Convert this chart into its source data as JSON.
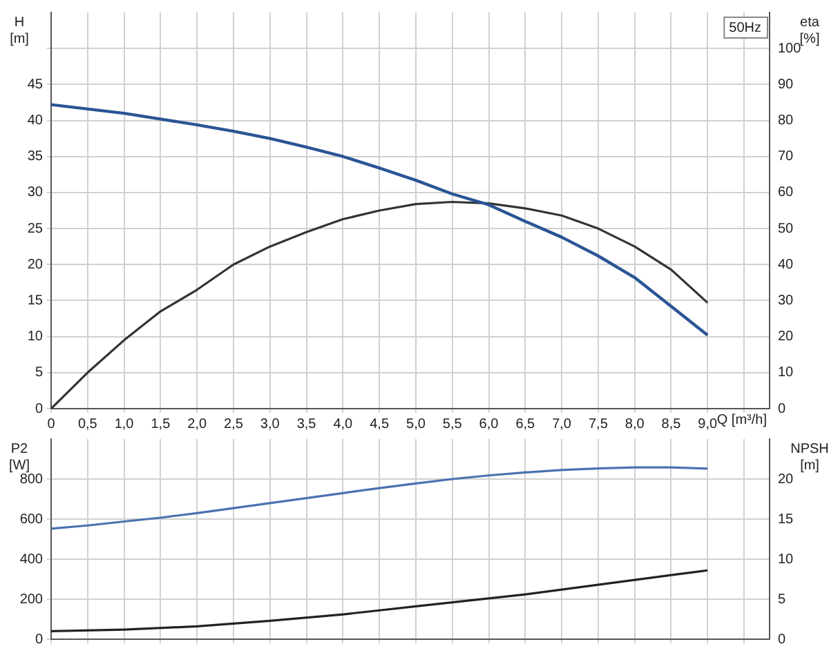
{
  "chart_data": [
    {
      "type": "line",
      "title": "50Hz",
      "xlabel": "Q [m³/h]",
      "ylabel": "H [m]",
      "y2label": "eta [%]",
      "xlim": [
        0,
        9.85
      ],
      "xticks": [
        0,
        {
          "value": 0.5,
          "label": "0,5"
        },
        {
          "value": 1,
          "label": "1,0"
        },
        {
          "value": 1.5,
          "label": "1,5"
        },
        {
          "value": 2,
          "label": "2,0"
        },
        {
          "value": 2.5,
          "label": "2,5"
        },
        {
          "value": 3,
          "label": "3,0"
        },
        {
          "value": 3.5,
          "label": "3,5"
        },
        {
          "value": 4,
          "label": "4,0"
        },
        {
          "value": 4.5,
          "label": "4,5"
        },
        {
          "value": 5,
          "label": "5,0"
        },
        {
          "value": 5.5,
          "label": "5,5"
        },
        {
          "value": 6,
          "label": "6,0"
        },
        {
          "value": 6.5,
          "label": "6,5"
        },
        {
          "value": 7,
          "label": "7,0"
        },
        {
          "value": 7.5,
          "label": "7,5"
        },
        {
          "value": 8,
          "label": "8,0"
        },
        {
          "value": 8.5,
          "label": "8,5"
        },
        {
          "value": 9,
          "label": "9,0"
        },
        {
          "value": 9.5,
          "label": null
        }
      ],
      "ylim": [
        0,
        55
      ],
      "yticks": [
        0,
        5,
        10,
        15,
        20,
        25,
        30,
        35,
        40,
        45,
        {
          "value": 50,
          "label": null
        }
      ],
      "y2lim": [
        0,
        110
      ],
      "y2ticks": [
        0,
        10,
        20,
        30,
        40,
        50,
        60,
        70,
        80,
        90,
        100
      ],
      "grid": true,
      "series": [
        {
          "color": "#2a5595",
          "x": [
            0,
            1,
            2,
            2.5,
            3,
            3.5,
            4,
            4.5,
            5,
            5.5,
            6,
            6.5,
            7,
            7.5,
            8,
            8.5,
            9
          ],
          "values": [
            42.2,
            41,
            39.4,
            38.5,
            37.5,
            36.3,
            35,
            33.4,
            31.7,
            29.8,
            28.3,
            26,
            23.8,
            21.2,
            18.2,
            14.2,
            10.2
          ]
        },
        {
          "color": "#333333",
          "axis": "y2",
          "x": [
            0,
            0.5,
            1,
            1.5,
            2,
            2.5,
            3,
            3.5,
            4,
            4.5,
            5,
            5.5,
            6,
            6.5,
            7,
            7.5,
            8,
            8.5,
            9
          ],
          "values": [
            0,
            10,
            19,
            27,
            33,
            40,
            45,
            49,
            52.6,
            55,
            56.8,
            57.4,
            57,
            55.6,
            53.6,
            50,
            45,
            38.6,
            29.4
          ]
        }
      ]
    },
    {
      "type": "line",
      "ylabel": "P2 [W]",
      "y2label": "NPSH [m]",
      "tick_labels": "y",
      "xlim": [
        0,
        9.85
      ],
      "xticks": [
        0,
        0.5,
        1,
        1.5,
        2,
        2.5,
        3,
        3.5,
        4,
        4.5,
        5,
        5.5,
        6,
        6.5,
        7,
        7.5,
        8,
        8.5,
        9,
        9.5
      ],
      "ylim": [
        0,
        1000
      ],
      "yticks": [
        0,
        200,
        400,
        600,
        800
      ],
      "y2lim": [
        0,
        25
      ],
      "y2ticks": [
        0,
        5,
        10,
        15,
        20
      ],
      "grid": true,
      "series": [
        {
          "color": "#4a72b0",
          "x": [
            0,
            0.5,
            1,
            1.5,
            2,
            2.5,
            3,
            3.5,
            4,
            4.5,
            5,
            5.5,
            6,
            6.5,
            7,
            7.5,
            8,
            8.5,
            9
          ],
          "values": [
            552,
            568,
            588,
            607,
            630,
            655,
            680,
            705,
            730,
            755,
            778,
            800,
            818,
            833,
            845,
            853,
            858,
            858,
            852
          ]
        },
        {
          "color": "#222222",
          "axis": "y2",
          "x": [
            0,
            1,
            2,
            3,
            4,
            4.5,
            5,
            5.5,
            6,
            6.5,
            7,
            7.5,
            8,
            8.5,
            9
          ],
          "values": [
            1,
            1.2,
            1.6,
            2.3,
            3.1,
            3.6,
            4.1,
            4.6,
            5.1,
            5.6,
            6.2,
            6.8,
            7.4,
            8,
            8.6
          ]
        }
      ]
    }
  ]
}
